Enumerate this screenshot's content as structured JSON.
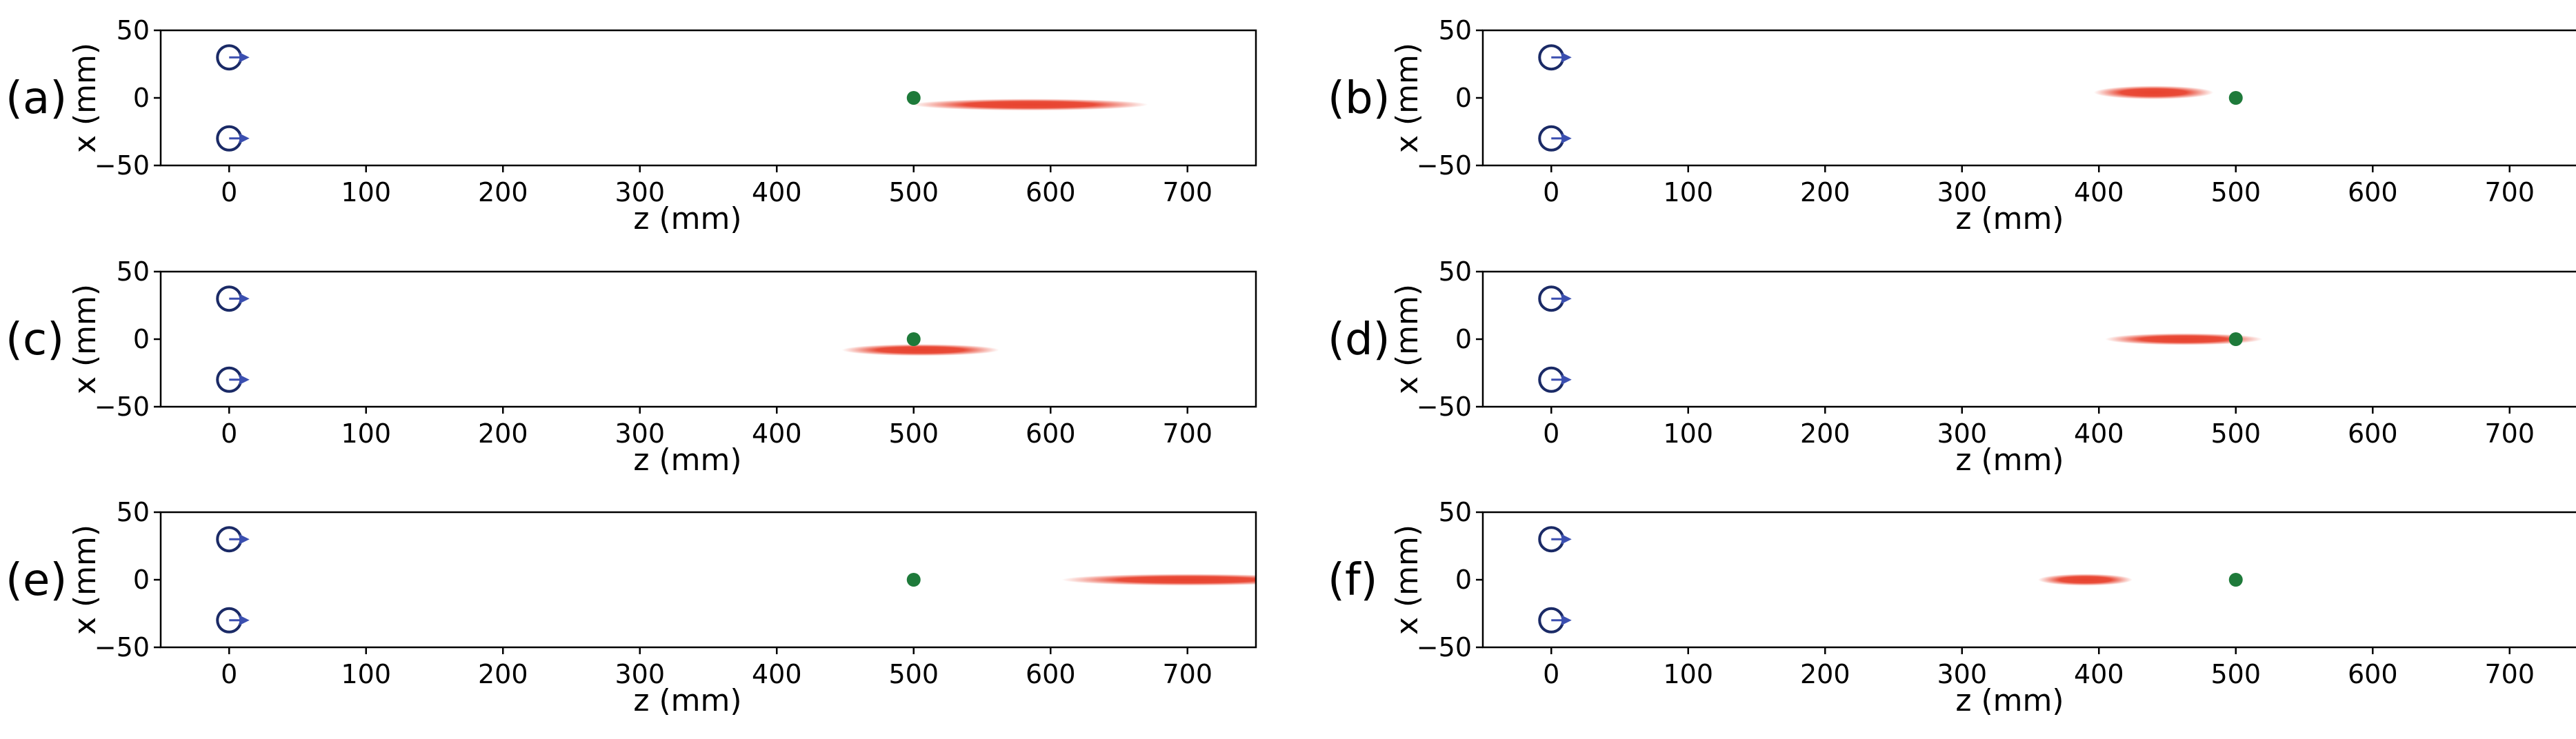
{
  "chart_data": [
    {
      "type": "scatter",
      "panel_label": "(a)",
      "xlabel": "z (mm)",
      "ylabel": "x (mm)",
      "xlim": [
        -50,
        750
      ],
      "ylim": [
        -50,
        50
      ],
      "xticks": [
        0,
        100,
        200,
        300,
        400,
        500,
        600,
        700
      ],
      "yticks": [
        -50,
        0,
        50
      ],
      "grid": false,
      "sources": [
        {
          "z": 0,
          "x": 30
        },
        {
          "z": 0,
          "x": -30
        }
      ],
      "target": {
        "z": 500,
        "x": 0
      },
      "focus": {
        "z_center": 585,
        "z_halfwidth": 75,
        "x_center": -5,
        "x_halfwidth": 3.5
      },
      "colors": {
        "source": "#1a2a66",
        "arrow": "#3b4fb0",
        "target": "#1e7a3a",
        "focus": "#e8422e"
      }
    },
    {
      "type": "scatter",
      "panel_label": "(b)",
      "xlabel": "z (mm)",
      "ylabel": "x (mm)",
      "xlim": [
        -50,
        750
      ],
      "ylim": [
        -50,
        50
      ],
      "xticks": [
        0,
        100,
        200,
        300,
        400,
        500,
        600,
        700
      ],
      "yticks": [
        -50,
        0,
        50
      ],
      "grid": false,
      "sources": [
        {
          "z": 0,
          "x": 30
        },
        {
          "z": 0,
          "x": -30
        }
      ],
      "target": {
        "z": 500,
        "x": 0
      },
      "focus": {
        "z_center": 440,
        "z_halfwidth": 38,
        "x_center": 4,
        "x_halfwidth": 4
      },
      "colors": {
        "source": "#1a2a66",
        "arrow": "#3b4fb0",
        "target": "#1e7a3a",
        "focus": "#e8422e"
      }
    },
    {
      "type": "scatter",
      "panel_label": "(c)",
      "xlabel": "z (mm)",
      "ylabel": "x (mm)",
      "xlim": [
        -50,
        750
      ],
      "ylim": [
        -50,
        50
      ],
      "xticks": [
        0,
        100,
        200,
        300,
        400,
        500,
        600,
        700
      ],
      "yticks": [
        -50,
        0,
        50
      ],
      "grid": false,
      "sources": [
        {
          "z": 0,
          "x": 30
        },
        {
          "z": 0,
          "x": -30
        }
      ],
      "target": {
        "z": 500,
        "x": 0
      },
      "focus": {
        "z_center": 505,
        "z_halfwidth": 50,
        "x_center": -8,
        "x_halfwidth": 3.5
      },
      "colors": {
        "source": "#1a2a66",
        "arrow": "#3b4fb0",
        "target": "#1e7a3a",
        "focus": "#e8422e"
      }
    },
    {
      "type": "scatter",
      "panel_label": "(d)",
      "xlabel": "z (mm)",
      "ylabel": "x (mm)",
      "xlim": [
        -50,
        750
      ],
      "ylim": [
        -50,
        50
      ],
      "xticks": [
        0,
        100,
        200,
        300,
        400,
        500,
        600,
        700
      ],
      "yticks": [
        -50,
        0,
        50
      ],
      "grid": false,
      "sources": [
        {
          "z": 0,
          "x": 30
        },
        {
          "z": 0,
          "x": -30
        }
      ],
      "target": {
        "z": 500,
        "x": 0
      },
      "focus": {
        "z_center": 462,
        "z_halfwidth": 50,
        "x_center": 0,
        "x_halfwidth": 3.5
      },
      "colors": {
        "source": "#1a2a66",
        "arrow": "#3b4fb0",
        "target": "#1e7a3a",
        "focus": "#e8422e"
      }
    },
    {
      "type": "scatter",
      "panel_label": "(e)",
      "xlabel": "z (mm)",
      "ylabel": "x (mm)",
      "xlim": [
        -50,
        750
      ],
      "ylim": [
        -50,
        50
      ],
      "xticks": [
        0,
        100,
        200,
        300,
        400,
        500,
        600,
        700
      ],
      "yticks": [
        -50,
        0,
        50
      ],
      "grid": false,
      "sources": [
        {
          "z": 0,
          "x": 30
        },
        {
          "z": 0,
          "x": -30
        }
      ],
      "target": {
        "z": 500,
        "x": 0
      },
      "focus": {
        "z_center": 700,
        "z_halfwidth": 80,
        "x_center": 0,
        "x_halfwidth": 3.5
      },
      "colors": {
        "source": "#1a2a66",
        "arrow": "#3b4fb0",
        "target": "#1e7a3a",
        "focus": "#e8422e"
      }
    },
    {
      "type": "scatter",
      "panel_label": "(f)",
      "xlabel": "z (mm)",
      "ylabel": "x (mm)",
      "xlim": [
        -50,
        750
      ],
      "ylim": [
        -50,
        50
      ],
      "xticks": [
        0,
        100,
        200,
        300,
        400,
        500,
        600,
        700
      ],
      "yticks": [
        -50,
        0,
        50
      ],
      "grid": false,
      "sources": [
        {
          "z": 0,
          "x": 30
        },
        {
          "z": 0,
          "x": -30
        }
      ],
      "target": {
        "z": 500,
        "x": 0
      },
      "focus": {
        "z_center": 390,
        "z_halfwidth": 30,
        "x_center": 0,
        "x_halfwidth": 3.5
      },
      "colors": {
        "source": "#1a2a66",
        "arrow": "#3b4fb0",
        "target": "#1e7a3a",
        "focus": "#e8422e"
      }
    }
  ]
}
